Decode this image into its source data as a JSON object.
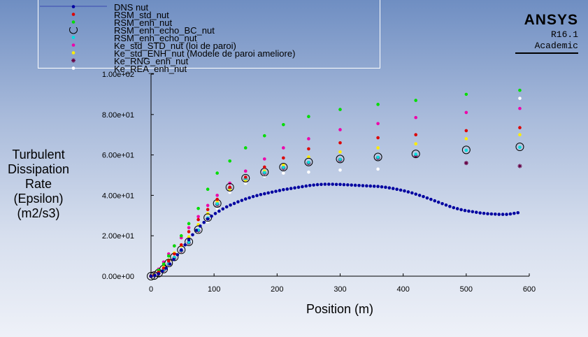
{
  "logo": {
    "name": "ANSYS",
    "version": "R16.1",
    "edition": "Academic"
  },
  "chart_data": {
    "type": "scatter",
    "xlabel": "Position (m)",
    "ylabel_lines": [
      "Turbulent",
      "Dissipation",
      "Rate",
      "(Epsilon)",
      "(m2/s3)"
    ],
    "xlim": [
      0,
      600
    ],
    "ylim": [
      0,
      100
    ],
    "xticks": [
      "0",
      "100",
      "200",
      "300",
      "400",
      "500",
      "600"
    ],
    "yticks": [
      "0.00e+00",
      "2.00e+01",
      "4.00e+01",
      "6.00e+01",
      "8.00e+01",
      "1.00e+02"
    ],
    "grid": false,
    "legend_position": "top-left",
    "series": [
      {
        "name": "DNS nut",
        "marker": "dot",
        "color": "#0000a0",
        "x": [
          0,
          6,
          12,
          18,
          24,
          30,
          36,
          42,
          48,
          54,
          60,
          66,
          72,
          78,
          84,
          90,
          96,
          102,
          108,
          114,
          120,
          126,
          132,
          138,
          144,
          150,
          156,
          162,
          168,
          174,
          180,
          186,
          192,
          198,
          204,
          210,
          216,
          222,
          228,
          234,
          240,
          246,
          252,
          258,
          264,
          270,
          276,
          282,
          288,
          294,
          300,
          306,
          312,
          318,
          324,
          330,
          336,
          342,
          348,
          354,
          360,
          366,
          372,
          378,
          384,
          390,
          396,
          402,
          408,
          414,
          420,
          426,
          432,
          438,
          444,
          450,
          456,
          462,
          468,
          474,
          480,
          486,
          492,
          498,
          504,
          510,
          516,
          522,
          528,
          534,
          540,
          546,
          552,
          558,
          564,
          570,
          576,
          582
        ],
        "y": [
          0.0,
          0.4,
          1.2,
          2.5,
          4.0,
          6.0,
          8.3,
          10.6,
          13.0,
          15.5,
          18.0,
          20.5,
          22.7,
          24.8,
          26.6,
          28.3,
          29.7,
          31.0,
          32.2,
          33.3,
          34.3,
          35.2,
          36.0,
          36.8,
          37.5,
          38.2,
          38.8,
          39.4,
          39.9,
          40.4,
          40.8,
          41.2,
          41.6,
          42.0,
          42.4,
          42.8,
          43.1,
          43.4,
          43.7,
          44.0,
          44.3,
          44.6,
          44.9,
          45.1,
          45.3,
          45.4,
          45.5,
          45.5,
          45.5,
          45.4,
          45.4,
          45.3,
          45.2,
          45.1,
          45.0,
          44.9,
          44.8,
          44.7,
          44.6,
          44.5,
          44.4,
          44.2,
          44.0,
          43.7,
          43.4,
          43.0,
          42.6,
          42.2,
          41.7,
          41.2,
          40.6,
          40.0,
          39.4,
          38.7,
          38.0,
          37.3,
          36.6,
          35.9,
          35.2,
          34.5,
          33.9,
          33.4,
          32.9,
          32.5,
          32.2,
          31.9,
          31.6,
          31.3,
          31.1,
          30.9,
          30.8,
          30.7,
          30.6,
          30.6,
          30.6,
          30.8,
          31.1,
          31.4
        ]
      },
      {
        "name": "RSM_std_nut",
        "marker": "dot",
        "color": "#dd0000",
        "x": [
          0,
          5,
          12,
          20,
          28,
          37,
          48,
          60,
          75,
          90,
          105,
          125,
          150,
          180,
          210,
          250,
          300,
          360,
          420,
          500,
          585
        ],
        "y": [
          0,
          0.5,
          2,
          4,
          7.5,
          11,
          15.5,
          22,
          28,
          33,
          38,
          44,
          49,
          54,
          58.5,
          63,
          66,
          68.5,
          70,
          72,
          73.5
        ]
      },
      {
        "name": "RSM_enh_nut",
        "marker": "dot",
        "color": "#00dd00",
        "x": [
          0,
          5,
          12,
          20,
          28,
          37,
          48,
          60,
          75,
          90,
          105,
          125,
          150,
          180,
          210,
          250,
          300,
          360,
          420,
          500,
          585
        ],
        "y": [
          0,
          0.8,
          3,
          6,
          10,
          15,
          20,
          26,
          33.5,
          43,
          51,
          57,
          63.5,
          69.5,
          75,
          79,
          82.5,
          85,
          87,
          90,
          92
        ]
      },
      {
        "name": "RSM_enh_echo_BC_nut",
        "marker": "ring",
        "color": "#000000",
        "x": [
          0,
          5,
          12,
          20,
          28,
          37,
          48,
          60,
          75,
          90,
          105,
          125,
          150,
          180,
          210,
          250,
          300,
          360,
          420,
          500,
          585
        ],
        "y": [
          0,
          0.3,
          1.5,
          3.5,
          6.5,
          9.5,
          13,
          17,
          23,
          29,
          36,
          44,
          48.5,
          51.5,
          54,
          56.5,
          58,
          59,
          60.5,
          62.5,
          64
        ]
      },
      {
        "name": "RSM_enh_echo_nut",
        "marker": "dot",
        "color": "#00dddd",
        "x": [
          0,
          5,
          12,
          20,
          28,
          37,
          48,
          60,
          75,
          90,
          105,
          125,
          150,
          180,
          210,
          250,
          300,
          360,
          420,
          500,
          585
        ],
        "y": [
          0,
          0.3,
          1.5,
          3.3,
          6.2,
          9.2,
          12.8,
          16.8,
          22.8,
          28.8,
          35.8,
          43.8,
          48.3,
          51.3,
          53.8,
          56.3,
          57.8,
          58.8,
          60.3,
          62.3,
          63.8
        ]
      },
      {
        "name": "Ke_std_STD_nut (loi de paroi)",
        "marker": "dot",
        "color": "#ee00aa",
        "x": [
          0,
          5,
          12,
          20,
          28,
          37,
          48,
          60,
          75,
          90,
          105,
          125,
          150,
          180,
          210,
          250,
          300,
          360,
          420,
          500,
          585
        ],
        "y": [
          0,
          1.2,
          3.5,
          7,
          11,
          15,
          19,
          24,
          29.5,
          35,
          40,
          46,
          52,
          58,
          63.5,
          68,
          72.5,
          75.5,
          78.5,
          81,
          83
        ]
      },
      {
        "name": "Ke_std_ENH_nut (Modele de paroi ameliore)",
        "marker": "dot",
        "color": "#ffee00",
        "x": [
          0,
          5,
          12,
          20,
          28,
          37,
          48,
          60,
          75,
          90,
          105,
          125,
          150,
          180,
          210,
          250,
          300,
          360,
          420,
          500,
          585
        ],
        "y": [
          0,
          0.5,
          2,
          4.5,
          8,
          11.5,
          15,
          19.5,
          25.5,
          31,
          37,
          43,
          47.5,
          52,
          55,
          59,
          61.5,
          63.5,
          65.5,
          68,
          70
        ]
      },
      {
        "name": "Ke_RNG_enh_nut",
        "marker": "star",
        "color": "#660044",
        "x": [
          0,
          5,
          12,
          20,
          28,
          37,
          48,
          60,
          75,
          90,
          105,
          125,
          150,
          180,
          210,
          250,
          300,
          360,
          420,
          500,
          585
        ],
        "y": [
          0,
          0.3,
          1.3,
          3,
          6,
          9,
          12.5,
          16.5,
          22.5,
          28.5,
          35.5,
          43.5,
          48,
          51,
          53.5,
          56,
          57.5,
          58.5,
          59.5,
          56,
          54.5
        ]
      },
      {
        "name": "Ke_REA_enh_nut",
        "marker": "dot",
        "color": "#ffffff",
        "x": [
          0,
          5,
          12,
          20,
          28,
          37,
          48,
          60,
          75,
          90,
          105,
          125,
          150,
          180,
          210,
          250,
          300,
          360,
          420,
          500,
          585
        ],
        "y": [
          0,
          0.2,
          1,
          2.5,
          5,
          8,
          11.5,
          16,
          21.5,
          27,
          33.5,
          41.5,
          46,
          49.5,
          51,
          51.5,
          52.5,
          53,
          60,
          90,
          88
        ]
      }
    ]
  }
}
